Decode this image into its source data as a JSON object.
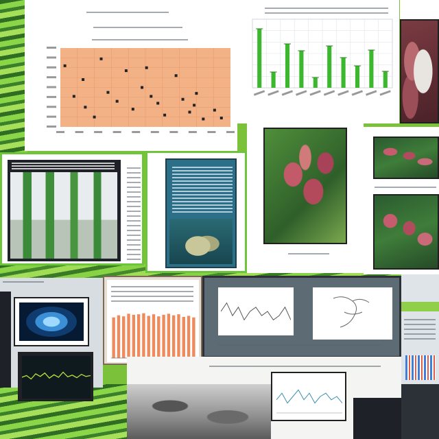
{
  "collage": {
    "description_visible_text": "",
    "palette": {
      "lime": "#7bc23a",
      "dark_green": "#2f6d22",
      "salmon": "#f3b286",
      "chart_green": "#3cb82f",
      "orange_bar": "#ee8a5c",
      "coral_pink": "#c25a6a"
    },
    "icons": [
      "scatter-chart-icon",
      "bar-chart-icon",
      "line-chart-icon",
      "photo-icon"
    ]
  },
  "chart_data": [
    {
      "type": "scatter",
      "title": "",
      "xlabel": "",
      "ylabel": "",
      "grid": true,
      "x": [
        0.2,
        0.6,
        1.0,
        1.1,
        1.8,
        2.1,
        2.5,
        2.9,
        3.2,
        3.6,
        4.0,
        4.3,
        4.6,
        5.1,
        5.4,
        5.7,
        6.0,
        6.3,
        6.8,
        7.1,
        1.5,
        3.8,
        5.9
      ],
      "y": [
        6.2,
        3.1,
        4.8,
        2.0,
        6.9,
        3.5,
        2.6,
        5.7,
        1.8,
        4.0,
        3.1,
        2.4,
        1.2,
        5.2,
        2.8,
        1.5,
        3.4,
        0.8,
        1.7,
        0.9,
        1.0,
        6.0,
        2.2
      ],
      "xlim": [
        0,
        7.5
      ],
      "ylim": [
        0,
        8
      ]
    },
    {
      "type": "bar",
      "title": "",
      "categories": [
        "",
        "",
        "",
        "",
        "",
        "",
        "",
        "",
        "",
        ""
      ],
      "values": [
        86,
        23,
        64,
        54,
        15,
        61,
        44,
        32,
        55,
        24
      ],
      "ylim": [
        0,
        100
      ]
    },
    {
      "type": "bar",
      "title": "",
      "categories": [
        "",
        "",
        "",
        "",
        "",
        "",
        "",
        "",
        "",
        "",
        "",
        "",
        "",
        "",
        "",
        "",
        ""
      ],
      "values": [
        78,
        82,
        80,
        85,
        83,
        84,
        86,
        81,
        84,
        80,
        83,
        85,
        82,
        84,
        79,
        81,
        78
      ],
      "ylim": [
        0,
        100
      ]
    },
    {
      "type": "line",
      "title": "",
      "x": [
        0,
        1,
        2,
        3,
        4,
        5,
        6,
        7,
        8,
        9,
        10,
        11,
        12,
        13,
        14,
        15
      ],
      "y": [
        5.0,
        5.4,
        4.6,
        5.8,
        5.2,
        6.0,
        4.8,
        5.6,
        5.0,
        6.2,
        5.1,
        5.5,
        4.9,
        5.7,
        5.2,
        5.4
      ],
      "ylim": [
        0,
        10
      ]
    },
    {
      "type": "line",
      "title": "",
      "x": [
        0,
        1,
        2,
        3,
        4,
        5,
        6,
        7,
        8,
        9,
        10,
        11,
        12
      ],
      "y": [
        4,
        6,
        3,
        5,
        7,
        4,
        6,
        3,
        5,
        6,
        4,
        5,
        3
      ],
      "ylim": [
        0,
        10
      ]
    }
  ]
}
